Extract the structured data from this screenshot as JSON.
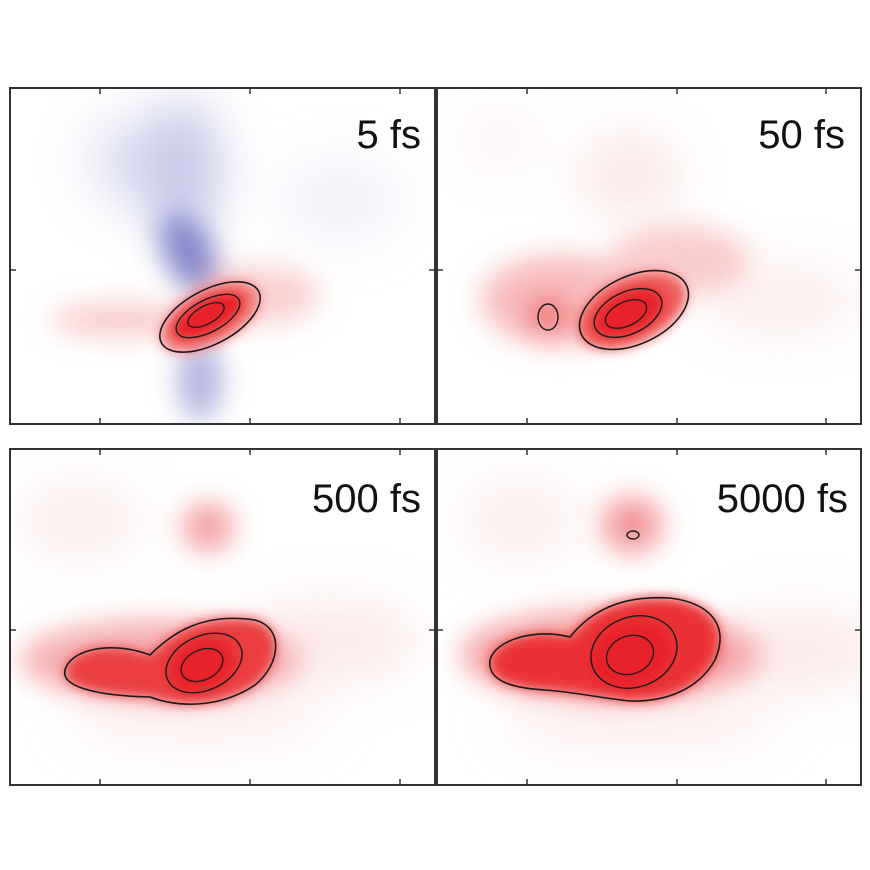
{
  "colors": {
    "positive": "#e8222a",
    "negative": "#4a4fb0",
    "contour": "#1a1a1a",
    "frame": "#333333",
    "background": "#ffffff"
  },
  "chart_data": [
    {
      "type": "heatmap",
      "label": "5 fs",
      "features": [
        {
          "kind": "positive-peak",
          "level": 1.0,
          "contours": 3
        },
        {
          "kind": "negative-lobe",
          "level": 0.6
        },
        {
          "kind": "negative-lobe",
          "level": 0.45
        }
      ]
    },
    {
      "type": "heatmap",
      "label": "50 fs",
      "features": [
        {
          "kind": "positive-peak",
          "level": 1.0,
          "contours": 3
        },
        {
          "kind": "positive-side-peak",
          "level": 0.55,
          "contours": 1
        }
      ]
    },
    {
      "type": "heatmap",
      "label": "500 fs",
      "features": [
        {
          "kind": "positive-peak",
          "level": 1.0,
          "contours": 3
        },
        {
          "kind": "positive-shoulder",
          "level": 0.75
        },
        {
          "kind": "positive-upper-peak",
          "level": 0.45
        }
      ]
    },
    {
      "type": "heatmap",
      "label": "5000 fs",
      "features": [
        {
          "kind": "positive-peak",
          "level": 1.0,
          "contours": 3
        },
        {
          "kind": "positive-shoulder",
          "level": 0.75
        },
        {
          "kind": "positive-upper-peak",
          "level": 0.5,
          "contours": 1
        }
      ]
    }
  ]
}
